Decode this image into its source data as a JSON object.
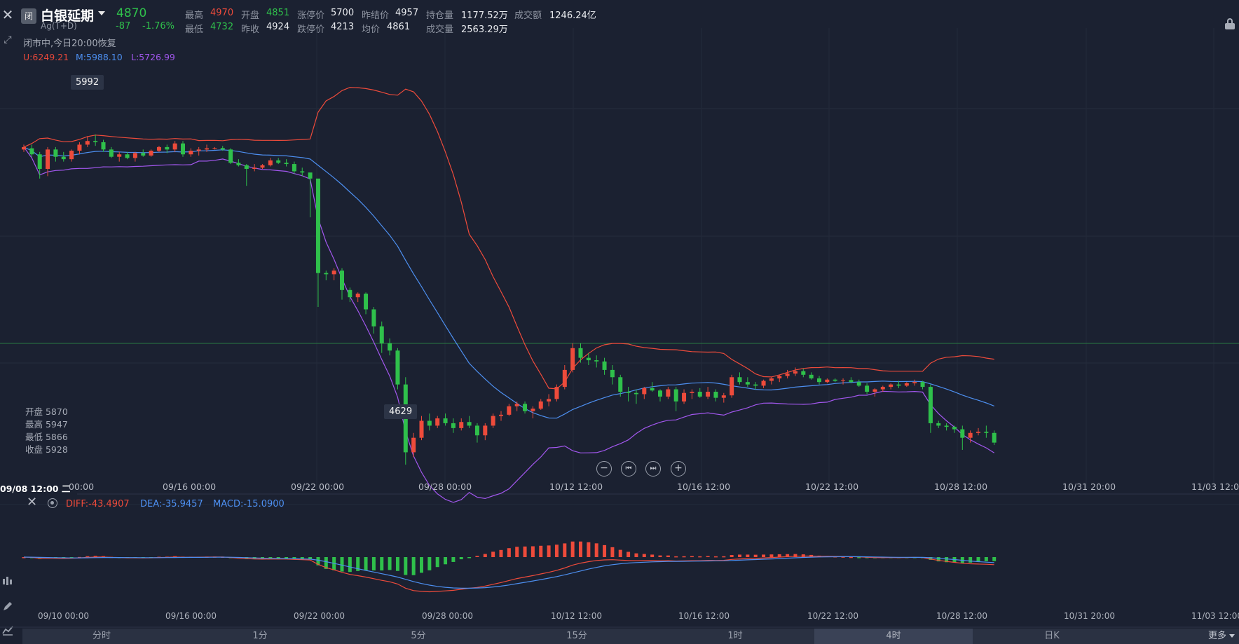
{
  "header": {
    "close_icon": "close-icon",
    "logo_text": "闭",
    "title": "白银延期",
    "price": "4870",
    "code": "Ag(T+D)",
    "change": "-87",
    "change_pct": "-1.76%",
    "stats": {
      "high_label": "最高",
      "high": "4970",
      "open_label": "开盘",
      "open": "4851",
      "limit_up_label": "涨停价",
      "limit_up": "5700",
      "prev_settle_label": "昨结价",
      "prev_settle": "4957",
      "position_label": "持仓量",
      "position": "1177.52万",
      "turnover_label": "成交额",
      "turnover": "1246.24亿",
      "low_label": "最低",
      "low": "4732",
      "prev_close_label": "昨收",
      "prev_close": "4924",
      "limit_down_label": "跌停价",
      "limit_down": "4213",
      "avg_label": "均价",
      "avg": "4861",
      "volume_label": "成交量",
      "volume": "2563.29万"
    }
  },
  "status_text": "闭市中,今日20:00恢复",
  "boll": {
    "upper": "U:6249.21",
    "middle": "M:5988.10",
    "lower": "L:5726.99"
  },
  "markers": {
    "high_tag": "5992",
    "low_tag": "4629"
  },
  "ohlc_panel": {
    "open": "开盘 5870",
    "high": "最高 5947",
    "low": "最低 5866",
    "close": "收盘 5928"
  },
  "zoom_controls": [
    "−",
    "⏮",
    "⏭",
    "+"
  ],
  "main_x_axis": {
    "first": "09/08 12:00 二",
    "labels": [
      "00:00",
      "09/16 00:00",
      "09/22 00:00",
      "09/28 00:00",
      "10/12 12:00",
      "10/16 12:00",
      "10/22 12:00",
      "10/28 12:00",
      "10/31 20:00",
      "11/03 12:00"
    ]
  },
  "macd": {
    "diff": "DIFF:-43.4907",
    "dea": "DEA:-35.9457",
    "macd": "MACD:-15.0900",
    "x_labels": [
      "09/10 00:00",
      "09/16 00:00",
      "09/22 00:00",
      "09/28 00:00",
      "10/12 12:00",
      "10/16 12:00",
      "10/22 12:00",
      "10/28 12:00",
      "10/31 20:00",
      "11/03 12:00"
    ]
  },
  "periods": [
    "分时",
    "1分",
    "5分",
    "15分",
    "1时",
    "4时",
    "日K"
  ],
  "active_period": "4时",
  "more_label": "更多",
  "colors": {
    "up": "#ee4b3b",
    "down": "#2fc04b",
    "mid": "#4d8ff0",
    "lower": "#a257ee",
    "bg": "#1b2131"
  },
  "chart_data": {
    "type": "candlestick",
    "series": [
      {
        "name": "K",
        "ohlc": [
          [
            5930,
            5950,
            5920,
            5940
          ],
          [
            5935,
            5950,
            5900,
            5910
          ],
          [
            5910,
            5920,
            5810,
            5850
          ],
          [
            5850,
            5940,
            5820,
            5930
          ],
          [
            5930,
            5940,
            5880,
            5900
          ],
          [
            5900,
            5920,
            5880,
            5890
          ],
          [
            5890,
            5930,
            5880,
            5925
          ],
          [
            5925,
            5960,
            5910,
            5950
          ],
          [
            5950,
            5985,
            5940,
            5965
          ],
          [
            5965,
            5992,
            5945,
            5960
          ],
          [
            5960,
            5970,
            5920,
            5930
          ],
          [
            5930,
            5940,
            5895,
            5900
          ],
          [
            5900,
            5920,
            5880,
            5910
          ],
          [
            5910,
            5920,
            5890,
            5895
          ],
          [
            5895,
            5920,
            5880,
            5915
          ],
          [
            5915,
            5930,
            5900,
            5905
          ],
          [
            5905,
            5930,
            5900,
            5925
          ],
          [
            5925,
            5945,
            5920,
            5940
          ],
          [
            5940,
            5950,
            5915,
            5930
          ],
          [
            5930,
            5965,
            5920,
            5955
          ],
          [
            5955,
            5965,
            5900,
            5910
          ],
          [
            5910,
            5935,
            5900,
            5925
          ],
          [
            5925,
            5940,
            5905,
            5930
          ],
          [
            5930,
            5950,
            5920,
            5935
          ],
          [
            5935,
            5940,
            5930,
            5936
          ],
          [
            5936,
            5945,
            5925,
            5930
          ],
          [
            5930,
            5935,
            5870,
            5875
          ],
          [
            5875,
            5890,
            5860,
            5865
          ],
          [
            5865,
            5870,
            5780,
            5850
          ],
          [
            5850,
            5870,
            5840,
            5855
          ],
          [
            5855,
            5870,
            5850,
            5865
          ],
          [
            5865,
            5895,
            5860,
            5885
          ],
          [
            5885,
            5895,
            5870,
            5875
          ],
          [
            5875,
            5890,
            5860,
            5870
          ],
          [
            5870,
            5880,
            5830,
            5840
          ],
          [
            5840,
            5855,
            5820,
            5835
          ],
          [
            5835,
            5830,
            5650,
            5810
          ],
          [
            5810,
            5800,
            5280,
            5420
          ],
          [
            5420,
            5430,
            5390,
            5415
          ],
          [
            5415,
            5440,
            5390,
            5430
          ],
          [
            5430,
            5440,
            5310,
            5350
          ],
          [
            5350,
            5360,
            5300,
            5320
          ],
          [
            5320,
            5340,
            5300,
            5335
          ],
          [
            5335,
            5340,
            5250,
            5270
          ],
          [
            5270,
            5280,
            5170,
            5200
          ],
          [
            5200,
            5220,
            5090,
            5130
          ],
          [
            5130,
            5150,
            5080,
            5100
          ],
          [
            5100,
            5110,
            4940,
            4960
          ],
          [
            4960,
            4990,
            4629,
            4680
          ],
          [
            4680,
            4760,
            4660,
            4740
          ],
          [
            4740,
            4830,
            4730,
            4810
          ],
          [
            4810,
            4840,
            4770,
            4790
          ],
          [
            4790,
            4830,
            4780,
            4820
          ],
          [
            4820,
            4840,
            4790,
            4800
          ],
          [
            4800,
            4820,
            4760,
            4780
          ],
          [
            4780,
            4820,
            4770,
            4805
          ],
          [
            4805,
            4830,
            4780,
            4790
          ],
          [
            4790,
            4800,
            4720,
            4750
          ],
          [
            4750,
            4800,
            4730,
            4790
          ],
          [
            4790,
            4840,
            4780,
            4830
          ],
          [
            4830,
            4850,
            4810,
            4835
          ],
          [
            4835,
            4880,
            4830,
            4870
          ],
          [
            4870,
            4890,
            4850,
            4880
          ],
          [
            4880,
            4890,
            4840,
            4850
          ],
          [
            4850,
            4870,
            4820,
            4860
          ],
          [
            4860,
            4900,
            4855,
            4890
          ],
          [
            4890,
            4920,
            4870,
            4900
          ],
          [
            4900,
            4960,
            4890,
            4950
          ],
          [
            4950,
            5040,
            4940,
            5020
          ],
          [
            5020,
            5130,
            5010,
            5110
          ],
          [
            5110,
            5130,
            5050,
            5070
          ],
          [
            5070,
            5090,
            5040,
            5060
          ],
          [
            5060,
            5080,
            5030,
            5055
          ],
          [
            5055,
            5070,
            5000,
            5020
          ],
          [
            5020,
            5040,
            4960,
            4990
          ],
          [
            4990,
            5000,
            4910,
            4930
          ],
          [
            4930,
            4950,
            4890,
            4925
          ],
          [
            4925,
            4940,
            4880,
            4920
          ],
          [
            4920,
            4950,
            4900,
            4945
          ],
          [
            4945,
            4970,
            4930,
            4935
          ],
          [
            4935,
            4940,
            4890,
            4910
          ],
          [
            4910,
            4950,
            4900,
            4940
          ],
          [
            4940,
            4950,
            4850,
            4890
          ],
          [
            4890,
            4940,
            4880,
            4925
          ],
          [
            4925,
            4940,
            4900,
            4930
          ],
          [
            4930,
            4945,
            4905,
            4910
          ],
          [
            4910,
            4950,
            4900,
            4930
          ],
          [
            4930,
            4940,
            4890,
            4905
          ],
          [
            4905,
            4925,
            4885,
            4915
          ],
          [
            4915,
            5000,
            4905,
            4990
          ],
          [
            4990,
            5010,
            4960,
            4970
          ],
          [
            4970,
            4990,
            4950,
            4960
          ],
          [
            4960,
            4970,
            4940,
            4955
          ],
          [
            4955,
            4980,
            4945,
            4975
          ],
          [
            4975,
            4990,
            4960,
            4985
          ],
          [
            4985,
            5000,
            4970,
            4995
          ],
          [
            4995,
            5020,
            4985,
            5005
          ],
          [
            5005,
            5030,
            4995,
            5015
          ],
          [
            5015,
            5025,
            4990,
            5000
          ],
          [
            5000,
            5010,
            4980,
            4985
          ],
          [
            4985,
            4995,
            4960,
            4970
          ],
          [
            4970,
            4985,
            4965,
            4980
          ],
          [
            4980,
            4985,
            4970,
            4975
          ],
          [
            4975,
            4985,
            4960,
            4978
          ],
          [
            4978,
            4990,
            4965,
            4970
          ],
          [
            4970,
            4980,
            4950,
            4955
          ],
          [
            4955,
            4965,
            4920,
            4930
          ],
          [
            4930,
            4945,
            4910,
            4940
          ],
          [
            4940,
            4955,
            4930,
            4950
          ],
          [
            4950,
            4965,
            4940,
            4960
          ],
          [
            4960,
            4975,
            4945,
            4955
          ],
          [
            4955,
            4970,
            4950,
            4965
          ],
          [
            4965,
            4980,
            4955,
            4970
          ],
          [
            4970,
            4975,
            4940,
            4950
          ],
          [
            4950,
            4960,
            4760,
            4800
          ],
          [
            4800,
            4810,
            4780,
            4790
          ],
          [
            4790,
            4800,
            4770,
            4785
          ],
          [
            4785,
            4790,
            4760,
            4775
          ],
          [
            4775,
            4790,
            4690,
            4740
          ],
          [
            4740,
            4770,
            4720,
            4760
          ],
          [
            4760,
            4780,
            4750,
            4765
          ],
          [
            4765,
            4790,
            4740,
            4760
          ],
          [
            4760,
            4770,
            4710,
            4720
          ]
        ]
      }
    ],
    "indicators": [
      "BOLL",
      "MACD"
    ],
    "ylim": [
      4580,
      6200
    ]
  }
}
